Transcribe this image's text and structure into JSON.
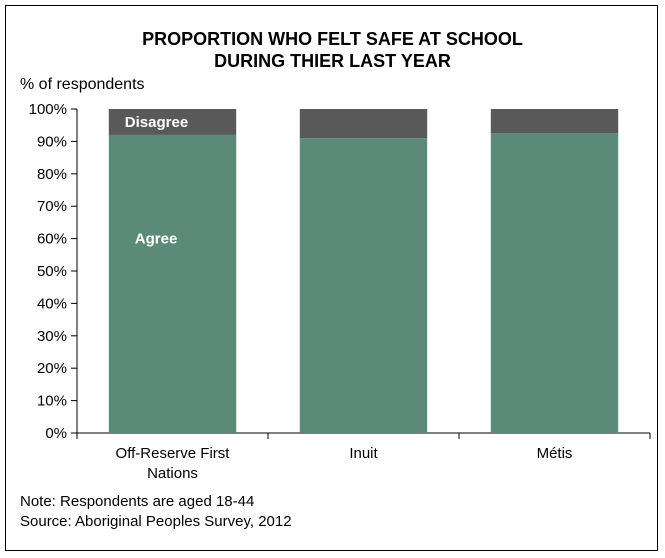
{
  "chart_data": {
    "type": "bar",
    "stacked": true,
    "title": "PROPORTION WHO FELT SAFE AT SCHOOL DURING THIER LAST YEAR",
    "title_lines": [
      "PROPORTION WHO FELT SAFE AT SCHOOL",
      "DURING THIER LAST YEAR"
    ],
    "ylabel": "% of respondents",
    "xlabel": "",
    "categories": [
      "Off-Reserve First Nations",
      "Inuit",
      "Métis"
    ],
    "category_lines": [
      [
        "Off-Reserve First",
        "Nations"
      ],
      [
        "Inuit"
      ],
      [
        "Métis"
      ]
    ],
    "series": [
      {
        "name": "Agree",
        "values": [
          92,
          91,
          92.5
        ],
        "color": "#5b8a79"
      },
      {
        "name": "Disagree",
        "values": [
          8,
          9,
          7.5
        ],
        "color": "#595959"
      }
    ],
    "ylim": [
      0,
      100
    ],
    "yticks": [
      0,
      10,
      20,
      30,
      40,
      50,
      60,
      70,
      80,
      90,
      100
    ],
    "ytick_labels": [
      "0%",
      "10%",
      "20%",
      "30%",
      "40%",
      "50%",
      "60%",
      "70%",
      "80%",
      "90%",
      "100%"
    ],
    "legend": "inline labels on first bar",
    "grid": false
  },
  "notes": {
    "note": "Note: Respondents are aged 18-44",
    "source": "Source: Aboriginal Peoples Survey, 2012"
  }
}
